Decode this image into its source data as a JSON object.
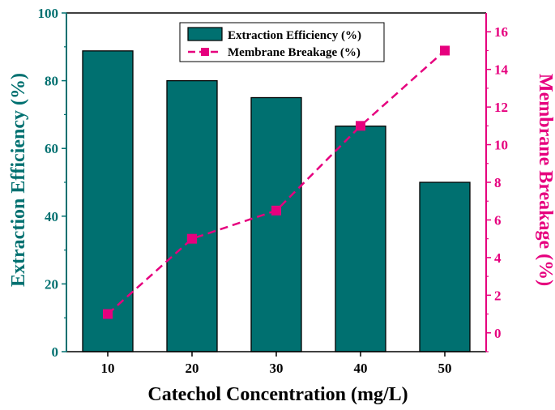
{
  "chart_data": {
    "type": "bar",
    "categories": [
      "10",
      "20",
      "30",
      "40",
      "50"
    ],
    "series": [
      {
        "name": "Extraction Efficiency (%)",
        "type": "bar",
        "axis": "left",
        "values": [
          88.8,
          80.0,
          75.0,
          66.6,
          50.0
        ],
        "color": "#007070"
      },
      {
        "name": "Membrane Breakage (%)",
        "type": "line",
        "axis": "right",
        "values": [
          1.0,
          5.0,
          6.5,
          11.0,
          15.0
        ],
        "color": "#e6007e"
      }
    ],
    "xlabel": "Catechol Concentration (mg/L)",
    "ylabel": "Extraction Efficiency (%)",
    "y2label": "Membrane Breakage (%)",
    "ylim": [
      0,
      100
    ],
    "y2lim": [
      -1,
      17
    ],
    "yticks": [
      "0",
      "20",
      "40",
      "60",
      "80",
      "100"
    ],
    "y2ticks": [
      "0",
      "2",
      "4",
      "6",
      "8",
      "10",
      "12",
      "14",
      "16"
    ],
    "grid": false,
    "legend": "top-center",
    "colors": {
      "left_axis": "#007070",
      "right_axis": "#e6007e",
      "bar_fill": "#007070"
    }
  }
}
